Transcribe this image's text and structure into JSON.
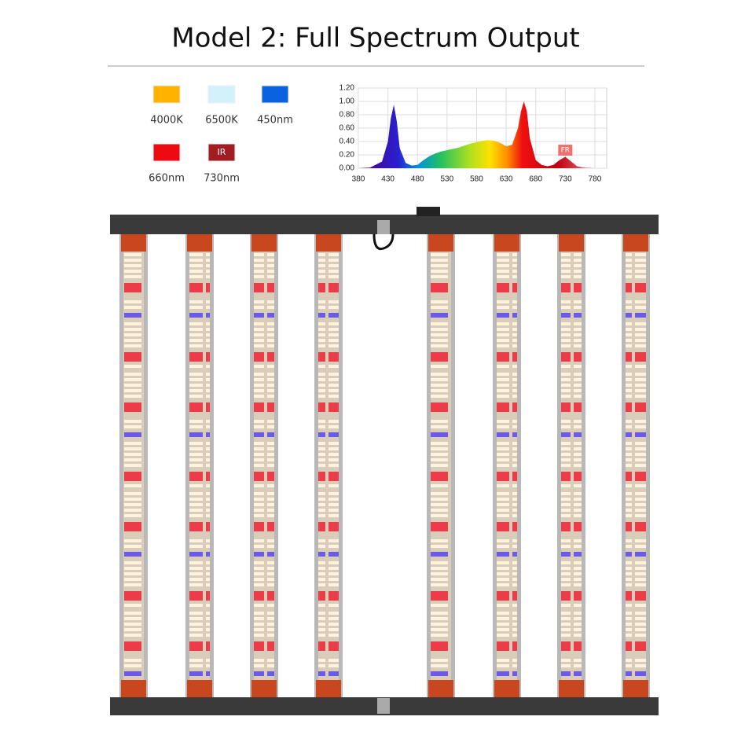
{
  "title": "Model 2: Full Spectrum Output",
  "legend": [
    {
      "label": "4000K",
      "color": "#ffb300"
    },
    {
      "label": "6500K",
      "color": "#d3f1fb"
    },
    {
      "label": "450nm",
      "color": "#0a62e0"
    },
    {
      "label": "660nm",
      "color": "#ee0a12"
    },
    {
      "label": "730nm",
      "color": "#a11d22",
      "badge": "IR"
    }
  ],
  "chart_data": {
    "type": "area",
    "x": [
      380,
      400,
      420,
      430,
      435,
      440,
      445,
      450,
      460,
      470,
      480,
      490,
      500,
      510,
      520,
      530,
      540,
      550,
      560,
      570,
      580,
      590,
      600,
      610,
      620,
      630,
      640,
      650,
      655,
      660,
      665,
      670,
      680,
      690,
      700,
      710,
      720,
      730,
      740,
      750,
      760,
      780
    ],
    "values": [
      0,
      0.01,
      0.1,
      0.4,
      0.75,
      0.95,
      0.7,
      0.3,
      0.08,
      0.04,
      0.05,
      0.12,
      0.18,
      0.22,
      0.25,
      0.27,
      0.29,
      0.31,
      0.34,
      0.37,
      0.39,
      0.41,
      0.42,
      0.41,
      0.38,
      0.33,
      0.35,
      0.6,
      0.85,
      1.0,
      0.85,
      0.45,
      0.12,
      0.05,
      0.03,
      0.05,
      0.12,
      0.17,
      0.1,
      0.03,
      0.01,
      0
    ],
    "xlim": [
      380,
      800
    ],
    "xticks": [
      380,
      430,
      480,
      530,
      580,
      630,
      680,
      730,
      780
    ],
    "ylim": [
      0,
      1.2
    ],
    "yticks": [
      {
        "value": 0,
        "label": "0.00"
      },
      {
        "value": 0.2,
        "label": "0.20"
      },
      {
        "value": 0.4,
        "label": "0.40"
      },
      {
        "value": 0.6,
        "label": "0.60"
      },
      {
        "value": 0.8,
        "label": "0.80"
      },
      {
        "value": 1.0,
        "label": "1.00"
      },
      {
        "value": 1.2,
        "label": "1.20"
      }
    ],
    "grid": true,
    "annotation": {
      "text": "FR",
      "x": 730
    }
  }
}
